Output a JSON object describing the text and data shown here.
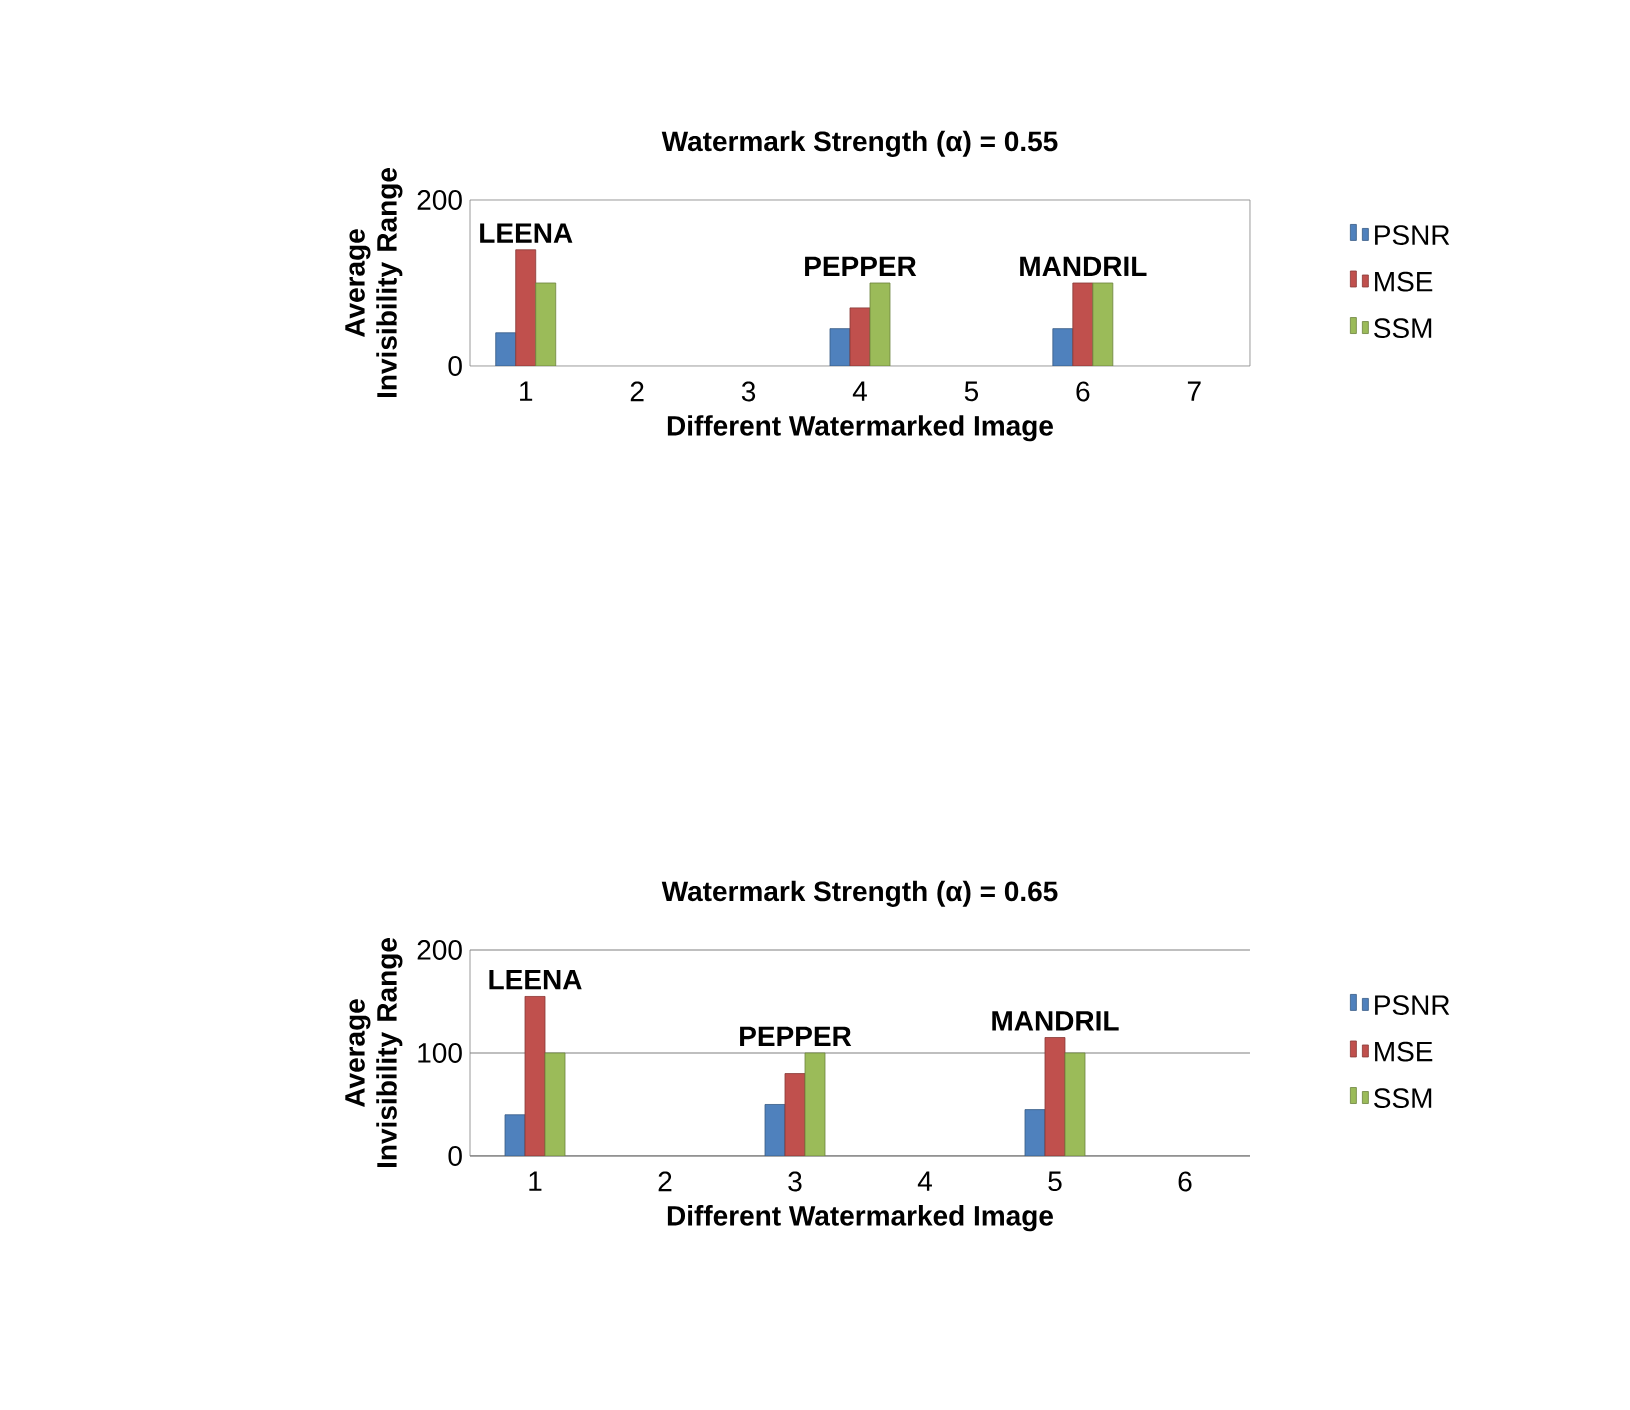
{
  "chart_data": [
    {
      "type": "bar",
      "title": "Watermark Strength (α) = 0.55",
      "xlabel": "Different Watermarked Image",
      "ylabel": "Average Invisibility Range",
      "categories": [
        "1",
        "2",
        "3",
        "4",
        "5",
        "6",
        "7"
      ],
      "series": [
        {
          "name": "PSNR",
          "color": "#4f81bd",
          "values": [
            40,
            null,
            null,
            45,
            null,
            45,
            null
          ]
        },
        {
          "name": "MSE",
          "color": "#c0504d",
          "values": [
            140,
            null,
            null,
            70,
            null,
            100,
            null
          ]
        },
        {
          "name": "SSM",
          "color": "#9bbb59",
          "values": [
            100,
            null,
            null,
            100,
            null,
            100,
            null
          ]
        }
      ],
      "ylim": [
        0,
        200
      ],
      "yticks": [
        0,
        200
      ],
      "legend": "right",
      "annotations": [
        {
          "text": "LEENA",
          "x": "1",
          "y": 140
        },
        {
          "text": "PEPPER",
          "x": "4",
          "y": 100
        },
        {
          "text": "MANDRIL",
          "x": "6",
          "y": 100
        }
      ]
    },
    {
      "type": "bar",
      "title": "Watermark Strength (α) = 0.65",
      "xlabel": "Different Watermarked Image",
      "ylabel": "Average Invisibility Range",
      "categories": [
        "1",
        "2",
        "3",
        "4",
        "5",
        "6"
      ],
      "series": [
        {
          "name": "PSNR",
          "color": "#4f81bd",
          "values": [
            40,
            null,
            50,
            null,
            45,
            null
          ]
        },
        {
          "name": "MSE",
          "color": "#c0504d",
          "values": [
            155,
            null,
            80,
            null,
            115,
            null
          ]
        },
        {
          "name": "SSM",
          "color": "#9bbb59",
          "values": [
            100,
            null,
            100,
            null,
            100,
            null
          ]
        }
      ],
      "ylim": [
        0,
        200
      ],
      "yticks": [
        0,
        100,
        200
      ],
      "grid": "y",
      "legend": "right",
      "annotations": [
        {
          "text": "LEENA",
          "x": "1",
          "y": 155
        },
        {
          "text": "PEPPER",
          "x": "3",
          "y": 100
        },
        {
          "text": "MANDRIL",
          "x": "5",
          "y": 115
        }
      ]
    }
  ]
}
